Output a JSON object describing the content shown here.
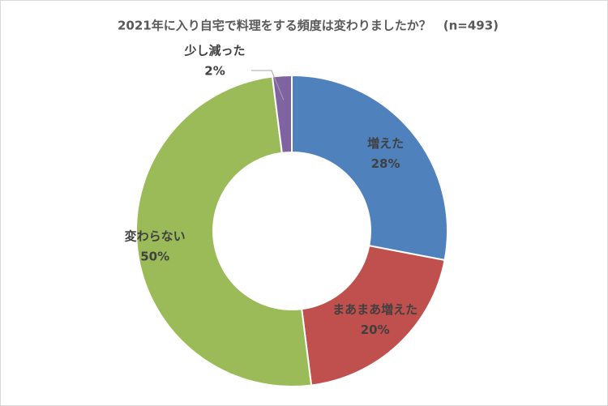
{
  "chart_data": {
    "type": "donut",
    "title": "2021年に入り自宅で料理をする頻度は変わりましたか？　(n=493)",
    "categories": [
      "増えた",
      "まあまあ増えた",
      "変わらない",
      "少し減った"
    ],
    "values": [
      28,
      20,
      50,
      2
    ],
    "value_labels": [
      "28%",
      "20%",
      "50%",
      "2%"
    ],
    "colors": [
      "#4f81bd",
      "#c0504d",
      "#9bbb59",
      "#8064a2"
    ]
  }
}
